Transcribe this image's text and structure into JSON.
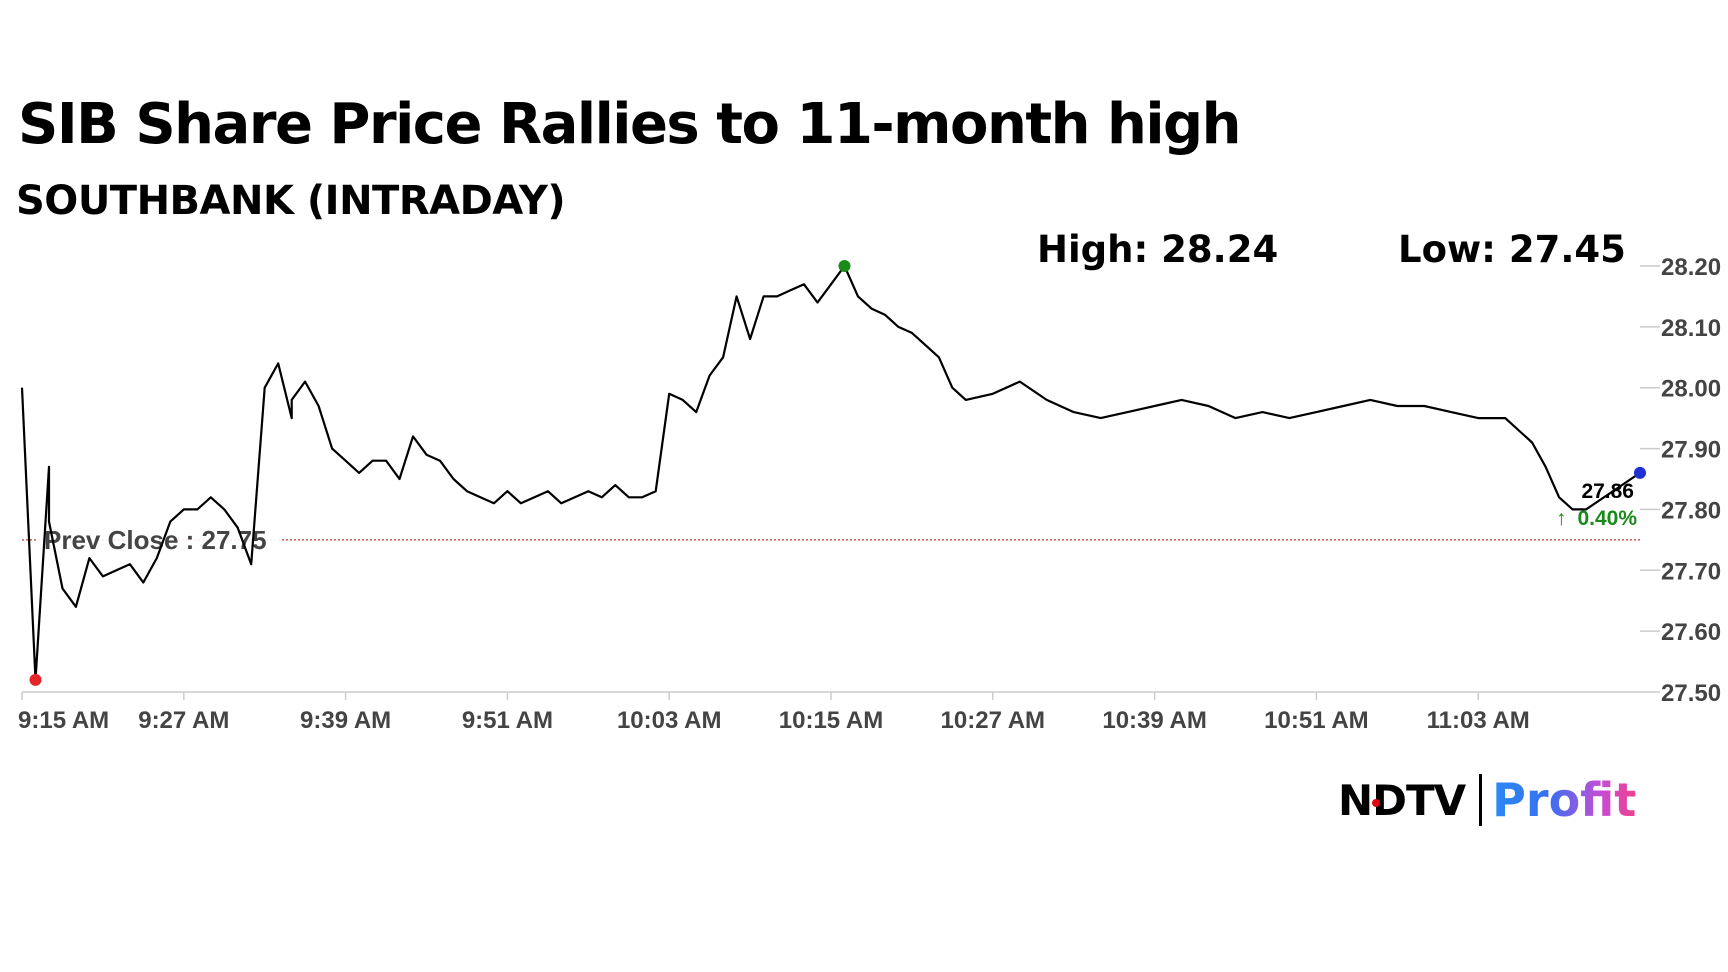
{
  "title": "SIB Share Price Rallies to 11-month high",
  "subtitle": "SOUTHBANK (INTRADAY)",
  "stats": {
    "high": "High: 28.24",
    "low": "Low: 27.45"
  },
  "logo": {
    "ndtv": "NDTV",
    "profit": "Profit"
  },
  "colors": {
    "line": "#000000",
    "prev_close_line": "#c0392b",
    "high_marker": "#1a8a1a",
    "low_marker": "#e3262b",
    "last_marker": "#1f2fd6",
    "change_up": "#1a8a1a",
    "axis": "#cccccc"
  },
  "chart_data": {
    "type": "line",
    "title": "SIB Share Price Rallies to 11-month high",
    "subtitle": "SOUTHBANK (INTRADAY)",
    "x_tick_labels": [
      "9:15 AM",
      "9:27 AM",
      "9:39 AM",
      "9:51 AM",
      "10:03 AM",
      "10:15 AM",
      "10:27 AM",
      "10:39 AM",
      "10:51 AM",
      "11:03 AM"
    ],
    "y_tick_labels": [
      "28.20",
      "28.10",
      "28.00",
      "27.90",
      "27.80",
      "27.70",
      "27.60",
      "27.50"
    ],
    "ylim": [
      27.5,
      28.2
    ],
    "x_range_minutes": [
      "9:15 AM",
      "11:15 AM"
    ],
    "prev_close": {
      "label": "Prev Close : 27.75",
      "value": 27.75
    },
    "last": {
      "price": "27.86",
      "change": "0.40%",
      "direction": "up",
      "value": 27.86
    },
    "high_marker": {
      "time": "10:16 AM",
      "value": 28.2
    },
    "low_marker": {
      "time": "9:16 AM",
      "value": 27.52
    },
    "series": [
      {
        "x": [
          "9:15",
          "9:16",
          "9:17",
          "9:17",
          "9:18",
          "9:19",
          "9:20",
          "9:21",
          "9:22",
          "9:23",
          "9:24",
          "9:25",
          "9:26",
          "9:27",
          "9:28",
          "9:29",
          "9:30",
          "9:31",
          "9:32",
          "9:33",
          "9:34",
          "9:35",
          "9:35",
          "9:36",
          "9:37",
          "9:38",
          "9:39",
          "9:40",
          "9:41",
          "9:42",
          "9:43",
          "9:44",
          "9:45",
          "9:46",
          "9:47",
          "9:48",
          "9:49",
          "9:50",
          "9:51",
          "9:52",
          "9:53",
          "9:54",
          "9:55",
          "9:56",
          "9:57",
          "9:58",
          "9:59",
          "10:00",
          "10:01",
          "10:02",
          "10:03",
          "10:04",
          "10:05",
          "10:06",
          "10:07",
          "10:08",
          "10:09",
          "10:10",
          "10:11",
          "10:12",
          "10:13",
          "10:14",
          "10:15",
          "10:16",
          "10:17",
          "10:18",
          "10:19",
          "10:20",
          "10:21",
          "10:22",
          "10:23",
          "10:24",
          "10:25",
          "10:27",
          "10:29",
          "10:31",
          "10:33",
          "10:35",
          "10:37",
          "10:39",
          "10:41",
          "10:43",
          "10:45",
          "10:47",
          "10:49",
          "10:51",
          "10:53",
          "10:55",
          "10:57",
          "10:59",
          "11:01",
          "11:03",
          "11:05",
          "11:07",
          "11:08",
          "11:09",
          "11:10",
          "11:11",
          "11:15"
        ],
        "y": [
          28.0,
          27.52,
          27.87,
          27.78,
          27.67,
          27.64,
          27.72,
          27.69,
          27.7,
          27.71,
          27.68,
          27.72,
          27.78,
          27.8,
          27.8,
          27.82,
          27.8,
          27.77,
          27.71,
          28.0,
          28.04,
          27.95,
          27.98,
          28.01,
          27.97,
          27.9,
          27.88,
          27.86,
          27.88,
          27.88,
          27.85,
          27.92,
          27.89,
          27.88,
          27.85,
          27.83,
          27.82,
          27.81,
          27.83,
          27.81,
          27.82,
          27.83,
          27.81,
          27.82,
          27.83,
          27.82,
          27.84,
          27.82,
          27.82,
          27.83,
          27.99,
          27.98,
          27.96,
          28.02,
          28.05,
          28.15,
          28.08,
          28.15,
          28.15,
          28.16,
          28.17,
          28.14,
          28.17,
          28.2,
          28.15,
          28.13,
          28.12,
          28.1,
          28.09,
          28.07,
          28.05,
          28.0,
          27.98,
          27.99,
          28.01,
          27.98,
          27.96,
          27.95,
          27.96,
          27.97,
          27.98,
          27.97,
          27.95,
          27.96,
          27.95,
          27.96,
          27.97,
          27.98,
          27.97,
          27.97,
          27.96,
          27.95,
          27.95,
          27.91,
          27.87,
          27.82,
          27.8,
          27.8,
          27.86
        ]
      }
    ]
  }
}
